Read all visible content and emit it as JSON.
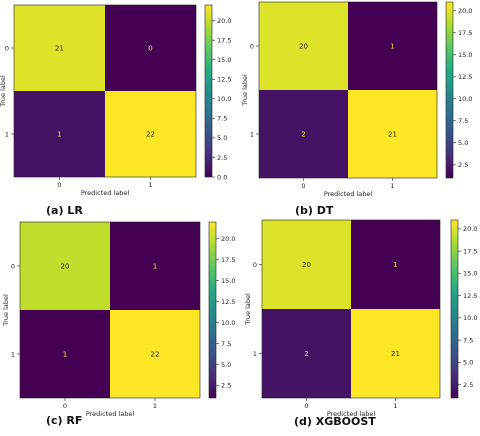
{
  "chart_data": [
    {
      "type": "heatmap",
      "caption": "(a) LR",
      "xlabel": "Predicted label",
      "ylabel": "True label",
      "x_ticks": [
        "0",
        "1"
      ],
      "y_ticks": [
        "0",
        "1"
      ],
      "values": [
        [
          21,
          0
        ],
        [
          1,
          22
        ]
      ],
      "colorbar_ticks": [
        "0.0",
        "2.5",
        "5.0",
        "7.5",
        "10.0",
        "12.5",
        "15.0",
        "17.5",
        "20.0"
      ],
      "colorbar_values": [
        0,
        2.5,
        5,
        7.5,
        10,
        12.5,
        15,
        17.5,
        20
      ],
      "vmin": 0,
      "vmax": 22,
      "colormap": "viridis"
    },
    {
      "type": "heatmap",
      "caption": "(b) DT",
      "xlabel": "Predicted label",
      "ylabel": "True label",
      "x_ticks": [
        "0",
        "1"
      ],
      "y_ticks": [
        "0",
        "1"
      ],
      "values": [
        [
          20,
          1
        ],
        [
          2,
          21
        ]
      ],
      "colorbar_ticks": [
        "2.5",
        "5.0",
        "7.5",
        "10.0",
        "12.5",
        "15.0",
        "17.5",
        "20.0"
      ],
      "colorbar_values": [
        2.5,
        5,
        7.5,
        10,
        12.5,
        15,
        17.5,
        20
      ],
      "vmin": 1,
      "vmax": 21,
      "colormap": "viridis"
    },
    {
      "type": "heatmap",
      "caption": "(c) RF",
      "xlabel": "Predicted label",
      "ylabel": "True label",
      "x_ticks": [
        "0",
        "1"
      ],
      "y_ticks": [
        "0",
        "1"
      ],
      "values": [
        [
          20,
          1
        ],
        [
          1,
          22
        ]
      ],
      "colorbar_ticks": [
        "2.5",
        "5.0",
        "7.5",
        "10.0",
        "12.5",
        "15.0",
        "17.5",
        "20.0"
      ],
      "colorbar_values": [
        2.5,
        5,
        7.5,
        10,
        12.5,
        15,
        17.5,
        20
      ],
      "vmin": 1,
      "vmax": 22,
      "colormap": "viridis"
    },
    {
      "type": "heatmap",
      "caption": "(d) XGBOOST",
      "xlabel": "Predicted label",
      "ylabel": "True label",
      "x_ticks": [
        "0",
        "1"
      ],
      "y_ticks": [
        "0",
        "1"
      ],
      "values": [
        [
          20,
          1
        ],
        [
          2,
          21
        ]
      ],
      "colorbar_ticks": [
        "2.5",
        "5.0",
        "7.5",
        "10.0",
        "12.5",
        "15.0",
        "17.5",
        "20.0"
      ],
      "colorbar_values": [
        2.5,
        5,
        7.5,
        10,
        12.5,
        15,
        17.5,
        20
      ],
      "vmin": 1,
      "vmax": 21,
      "colormap": "viridis"
    }
  ]
}
